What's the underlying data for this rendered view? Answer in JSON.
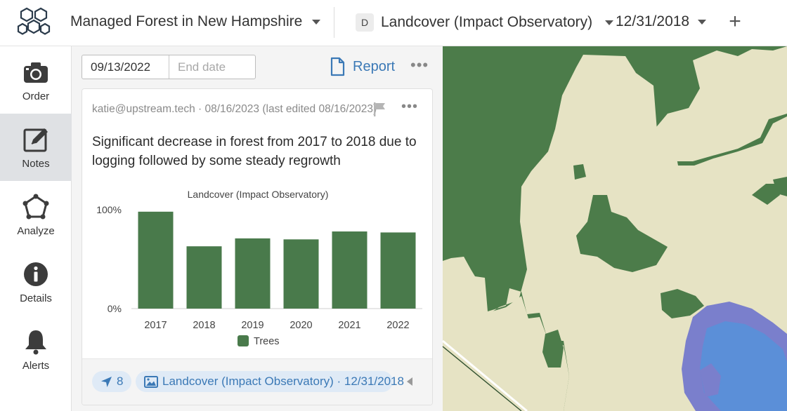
{
  "header": {
    "project_name": "Managed Forest in New Hampshire",
    "layer_badge": "D",
    "layer_name": "Landcover (Impact Observatory)",
    "date": "12/31/2018",
    "add_label": "+"
  },
  "sidebar": {
    "items": [
      {
        "label": "Order",
        "icon": "camera-icon"
      },
      {
        "label": "Notes",
        "icon": "notes-icon",
        "active": true
      },
      {
        "label": "Analyze",
        "icon": "polygon-icon"
      },
      {
        "label": "Details",
        "icon": "info-icon"
      },
      {
        "label": "Alerts",
        "icon": "bell-icon"
      }
    ]
  },
  "panel": {
    "start_date": "09/13/2022",
    "end_date_placeholder": "End date",
    "report_label": "Report",
    "more_label": "•••"
  },
  "note": {
    "meta": "katie@upstream.tech · 08/16/2023 (last edited 08/16/2023)",
    "more_label": "•••",
    "text": "Significant decrease in forest from 2017 to 2018 due to logging followed by some steady regrowth",
    "footer": {
      "location_count": "8",
      "layer_ref": "Landcover (Impact Observatory) · 12/31/2018"
    }
  },
  "chart_data": {
    "type": "bar",
    "title": "Landcover (Impact Observatory)",
    "categories": [
      "2017",
      "2018",
      "2019",
      "2020",
      "2021",
      "2022"
    ],
    "series": [
      {
        "name": "Trees",
        "values": [
          98,
          63,
          71,
          70,
          78,
          77
        ],
        "color": "#497a4b"
      }
    ],
    "yticks": [
      "0%",
      "100%"
    ],
    "ylim": [
      0,
      100
    ],
    "legend": "bottom",
    "grid": false
  },
  "colors": {
    "accent": "#3b79b6",
    "forest": "#4c7c4a",
    "bare": "#e6e3c4",
    "water": "#5b8fd8",
    "water_edge": "#7a7fcc"
  }
}
